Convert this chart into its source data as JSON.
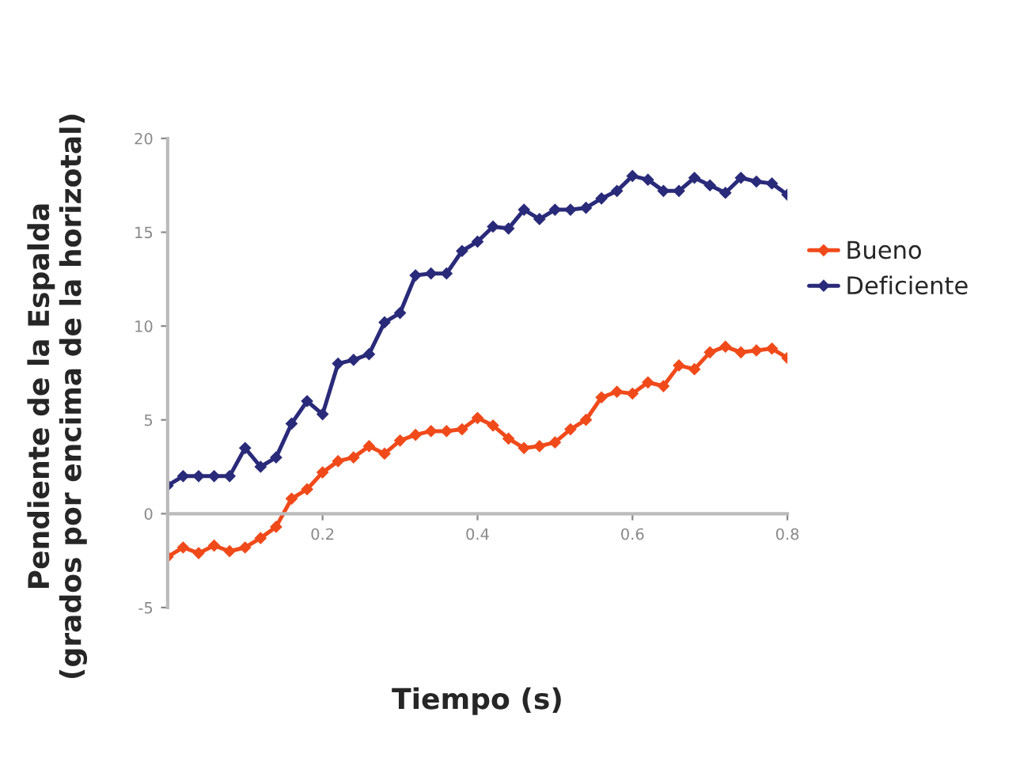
{
  "chart_data": {
    "type": "line",
    "xlabel": "Tiempo (s)",
    "ylabel": "Pendiente de la Espalda\n(grados por encima de la horizotal)",
    "x": [
      0,
      0.02,
      0.04,
      0.06,
      0.08,
      0.1,
      0.12,
      0.14,
      0.16,
      0.18,
      0.2,
      0.22,
      0.24,
      0.26,
      0.28,
      0.3,
      0.32,
      0.34,
      0.36,
      0.38,
      0.4,
      0.42,
      0.44,
      0.46,
      0.48,
      0.5,
      0.52,
      0.54,
      0.56,
      0.58,
      0.6,
      0.62,
      0.64,
      0.66,
      0.68,
      0.7,
      0.72,
      0.74,
      0.76,
      0.78,
      0.8
    ],
    "series": [
      {
        "name": "Bueno",
        "color": "#f04a1a",
        "values": [
          -2.3,
          -1.8,
          -2.1,
          -1.7,
          -2,
          -1.8,
          -1.3,
          -0.7,
          0.8,
          1.3,
          2.2,
          2.8,
          3,
          3.6,
          3.2,
          3.9,
          4.2,
          4.4,
          4.4,
          4.5,
          5.1,
          4.7,
          4,
          3.5,
          3.6,
          3.8,
          4.5,
          5,
          6.2,
          6.5,
          6.4,
          7,
          6.8,
          7.9,
          7.7,
          8.6,
          8.9,
          8.6,
          8.7,
          8.8,
          8.3
        ]
      },
      {
        "name": "Deficiente",
        "color": "#2a2a7a",
        "values": [
          1.5,
          2,
          2,
          2,
          2,
          3.5,
          2.5,
          3,
          4.8,
          6,
          5.3,
          8,
          8.2,
          8.5,
          10.2,
          10.7,
          12.7,
          12.8,
          12.8,
          14,
          14.5,
          15.3,
          15.2,
          16.2,
          15.7,
          16.2,
          16.2,
          16.3,
          16.8,
          17.2,
          18,
          17.8,
          17.2,
          17.2,
          17.9,
          17.5,
          17.1,
          17.9,
          17.7,
          17.6,
          17
        ]
      }
    ],
    "xlim": [
      0,
      0.8
    ],
    "xticks": [
      {
        "value": 0.2,
        "label": "0.2"
      },
      {
        "value": 0.4,
        "label": "0.4"
      },
      {
        "value": 0.6,
        "label": "0.6"
      },
      {
        "value": 0.8,
        "label": "0.8"
      }
    ],
    "ylim": [
      -5,
      20
    ],
    "yticks": [
      -5,
      0,
      5,
      10,
      15,
      20
    ],
    "marker": "diamond",
    "line_style": "solid",
    "grid": false,
    "legend": "right"
  }
}
